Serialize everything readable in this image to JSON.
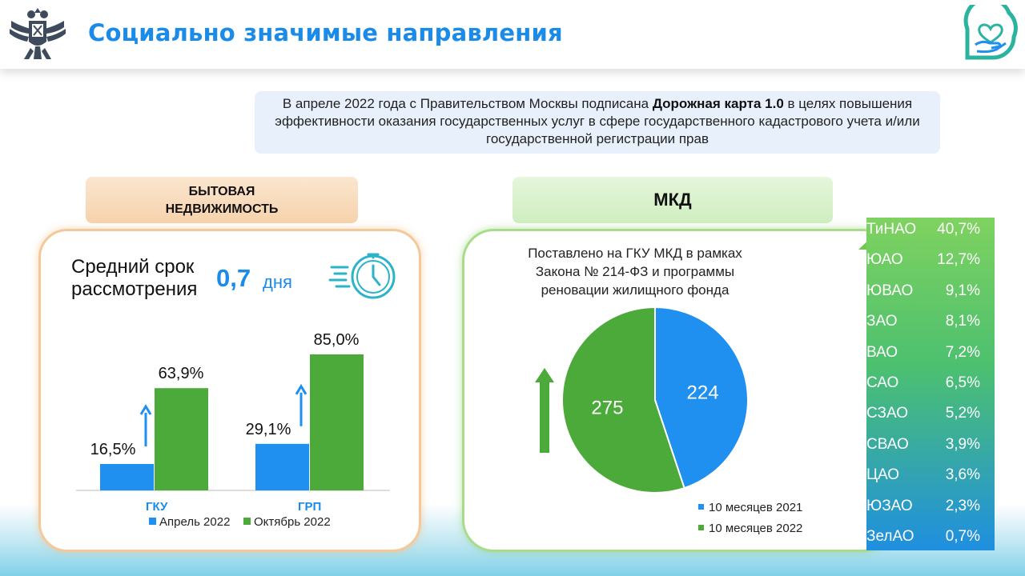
{
  "header": {
    "title": "Социально значимые направления"
  },
  "info": {
    "part1": "В апреле 2022 года с Правительством Москвы подписана ",
    "bold": "Дорожная карта 1.0",
    "part2": " в целях повышения эффективности оказания государственных услуг в сфере государственного кадастрового учета и/или государственной регистрации прав"
  },
  "left": {
    "category_line1": "БЫТОВАЯ",
    "category_line2": "НЕДВИЖИМОСТЬ",
    "term_line1": "Средний срок",
    "term_line2": "рассмотрения",
    "term_value": "0,7",
    "term_unit": "дня"
  },
  "right": {
    "category": "МКД",
    "pie_title_line1": "Поставлено на ГКУ МКД в рамках",
    "pie_title_line2": "Закона № 214-ФЗ и программы",
    "pie_title_line3": "реновации жилищного фонда"
  },
  "colors": {
    "blue": "#1f8ff0",
    "green": "#4caa3a",
    "accent": "#1a8be8"
  },
  "chart_data": [
    {
      "type": "bar",
      "categories": [
        "ГКУ",
        "ГРП"
      ],
      "series": [
        {
          "name": "Апрель 2022",
          "values": [
            16.5,
            29.1
          ],
          "labels": [
            "16,5%",
            "29,1%"
          ]
        },
        {
          "name": "Октябрь 2022",
          "values": [
            63.9,
            85.0
          ],
          "labels": [
            "63,9%",
            "85,0%"
          ]
        }
      ],
      "ylim": [
        0,
        100
      ],
      "title": "",
      "xlabel": "",
      "ylabel": "",
      "legend": "bottom"
    },
    {
      "type": "pie",
      "title": "Поставлено на ГКУ МКД в рамках Закона № 214-ФЗ и программы реновации жилищного фонда",
      "slices": [
        {
          "name": "10 месяцев 2021",
          "value": 224
        },
        {
          "name": "10 месяцев 2022",
          "value": 275
        }
      ],
      "legend": "bottom-right"
    }
  ],
  "ranking": [
    {
      "name": "ТиНАО",
      "value": "40,7%"
    },
    {
      "name": "ЮАО",
      "value": "12,7%"
    },
    {
      "name": "ЮВАО",
      "value": "9,1%"
    },
    {
      "name": "ЗАО",
      "value": "8,1%"
    },
    {
      "name": "ВАО",
      "value": "7,2%"
    },
    {
      "name": "САО",
      "value": "6,5%"
    },
    {
      "name": "СЗАО",
      "value": "5,2%"
    },
    {
      "name": "СВАО",
      "value": "3,9%"
    },
    {
      "name": "ЦАО",
      "value": "3,6%"
    },
    {
      "name": "ЮЗАО",
      "value": "2,3%"
    },
    {
      "name": "ЗелАО",
      "value": "0,7%"
    }
  ]
}
